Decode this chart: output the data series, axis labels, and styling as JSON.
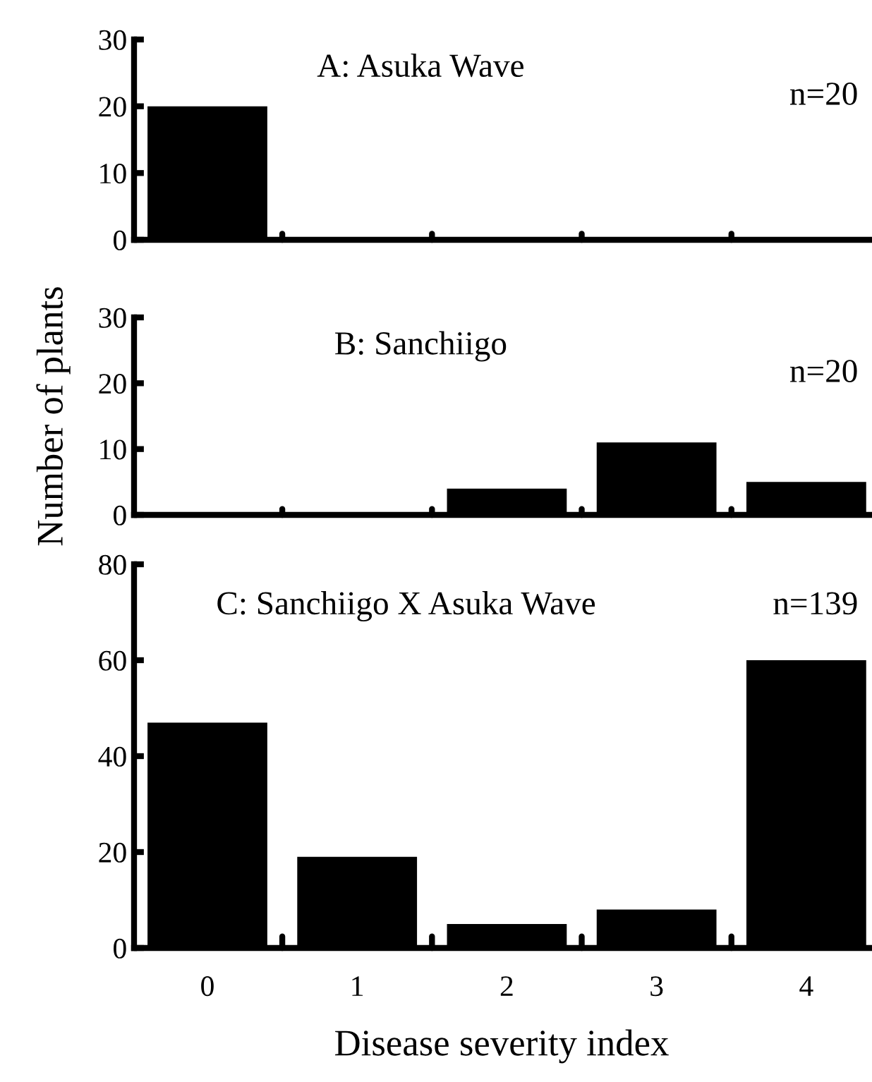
{
  "chart_data": [
    {
      "type": "bar",
      "title": "A: Asuka Wave",
      "categories": [
        "0",
        "1",
        "2",
        "3",
        "4"
      ],
      "values": [
        20,
        0,
        0,
        0,
        0
      ],
      "color": "#000000",
      "ylim": [
        0,
        30
      ],
      "yticks": [
        0,
        10,
        20,
        30
      ],
      "tick_labels": "y",
      "annotations": [
        "n=20"
      ],
      "grid": false,
      "legend": false
    },
    {
      "type": "bar",
      "title": "B: Sanchiigo",
      "ylabel": "Number of plants",
      "categories": [
        "0",
        "1",
        "2",
        "3",
        "4"
      ],
      "values": [
        0,
        0,
        4,
        11,
        5
      ],
      "color": "#000000",
      "ylim": [
        0,
        30
      ],
      "yticks": [
        0,
        10,
        20,
        30
      ],
      "tick_labels": "y",
      "annotations": [
        "n=20"
      ],
      "grid": false,
      "legend": false
    },
    {
      "type": "bar",
      "title": "C: Sanchiigo X Asuka Wave",
      "xlabel": "Disease severity index",
      "categories": [
        "0",
        "1",
        "2",
        "3",
        "4"
      ],
      "values": [
        47,
        19,
        5,
        8,
        60
      ],
      "color": "#000000",
      "ylim": [
        0,
        80
      ],
      "yticks": [
        0,
        20,
        40,
        60,
        80
      ],
      "annotations": [
        "n=139"
      ],
      "grid": false,
      "legend": false
    }
  ]
}
